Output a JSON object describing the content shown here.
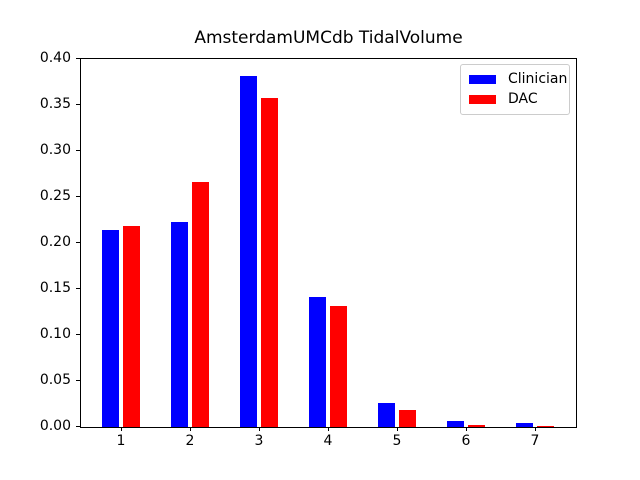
{
  "chart_data": {
    "type": "bar",
    "title": "AmsterdamUMCdb TidalVolume",
    "categories": [
      "1",
      "2",
      "3",
      "4",
      "5",
      "6",
      "7"
    ],
    "series": [
      {
        "name": "Clinician",
        "color": "#0000ff",
        "values": [
          0.214,
          0.223,
          0.382,
          0.141,
          0.026,
          0.006,
          0.004
        ]
      },
      {
        "name": "DAC",
        "color": "#ff0000",
        "values": [
          0.218,
          0.266,
          0.358,
          0.132,
          0.018,
          0.002,
          0.001
        ]
      }
    ],
    "xlabel": "",
    "ylabel": "",
    "ylim": [
      0.0,
      0.4
    ],
    "ytick_labels": [
      "0.00",
      "0.05",
      "0.10",
      "0.15",
      "0.20",
      "0.25",
      "0.30",
      "0.35",
      "0.40"
    ],
    "xtick_labels": [
      "1",
      "2",
      "3",
      "4",
      "5",
      "6",
      "7"
    ],
    "legend": {
      "location": "upper right",
      "entries": [
        "Clinician",
        "DAC"
      ]
    },
    "grid": false,
    "background_color": "#ffffff",
    "axis_color": "#000000"
  }
}
